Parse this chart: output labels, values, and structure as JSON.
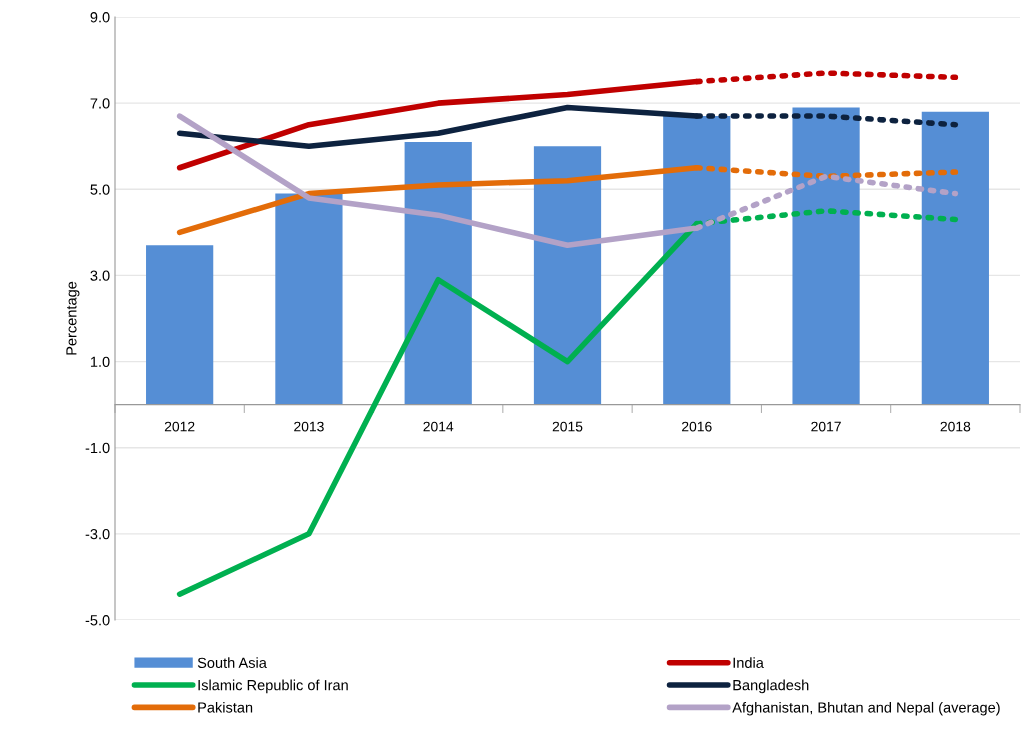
{
  "chart_data": {
    "type": "bar",
    "ylabel": "Percentage",
    "categories": [
      "2012",
      "2013",
      "2014",
      "2015",
      "2016",
      "2017",
      "2018"
    ],
    "ylim": [
      -5,
      9
    ],
    "yticks": [
      {
        "value": -5,
        "label": "-5.0"
      },
      {
        "value": -3,
        "label": "-3.0"
      },
      {
        "value": -1,
        "label": "-1.0"
      },
      {
        "value": 1,
        "label": "1.0"
      },
      {
        "value": 3,
        "label": "3.0"
      },
      {
        "value": 5,
        "label": "5.0"
      },
      {
        "value": 7,
        "label": "7.0"
      },
      {
        "value": 9,
        "label": "9.0"
      }
    ],
    "grid": "y",
    "legend": "bottom",
    "series": [
      {
        "name": "South Asia",
        "color": "#558ed5",
        "values": [
          3.7,
          4.9,
          6.1,
          6.0,
          6.7,
          6.9,
          6.8
        ]
      },
      {
        "name": "India",
        "type": "line",
        "color": "#c00000",
        "line_style": "solid",
        "values": [
          5.5,
          6.5,
          7.0,
          7.2,
          7.5,
          null,
          null
        ]
      },
      {
        "name": "Islamic Republic of Iran",
        "type": "line",
        "color": "#00b050",
        "line_style": "solid",
        "values": [
          -4.4,
          -3.0,
          2.9,
          1.0,
          4.2,
          null,
          null
        ]
      },
      {
        "name": "Bangladesh",
        "type": "line",
        "color": "#0d223f",
        "line_style": "solid",
        "values": [
          6.3,
          6.0,
          6.3,
          6.9,
          6.7,
          null,
          null
        ]
      },
      {
        "name": "Pakistan",
        "type": "line",
        "color": "#e36c09",
        "line_style": "solid",
        "values": [
          4.0,
          4.9,
          5.1,
          5.2,
          5.5,
          null,
          null
        ]
      },
      {
        "name": "Afghanistan, Bhutan and Nepal (average)",
        "type": "line",
        "color": "#b3a2c7",
        "line_style": "solid",
        "values": [
          6.7,
          4.8,
          4.4,
          3.7,
          4.1,
          null,
          null
        ]
      },
      {
        "type": "line",
        "color": "#c00000",
        "line_style": "dotted",
        "values": [
          null,
          null,
          null,
          null,
          7.5,
          7.7,
          7.6
        ]
      },
      {
        "type": "line",
        "color": "#00b050",
        "line_style": "dotted",
        "values": [
          null,
          null,
          null,
          null,
          4.2,
          4.5,
          4.3
        ]
      },
      {
        "type": "line",
        "color": "#0d223f",
        "line_style": "dotted",
        "values": [
          null,
          null,
          null,
          null,
          6.7,
          6.7,
          6.5
        ]
      },
      {
        "type": "line",
        "color": "#e36c09",
        "line_style": "dotted",
        "values": [
          null,
          null,
          null,
          null,
          5.5,
          5.3,
          5.4
        ]
      },
      {
        "type": "line",
        "color": "#b3a2c7",
        "line_style": "dotted",
        "values": [
          null,
          null,
          null,
          null,
          4.1,
          5.3,
          4.9
        ]
      }
    ]
  }
}
